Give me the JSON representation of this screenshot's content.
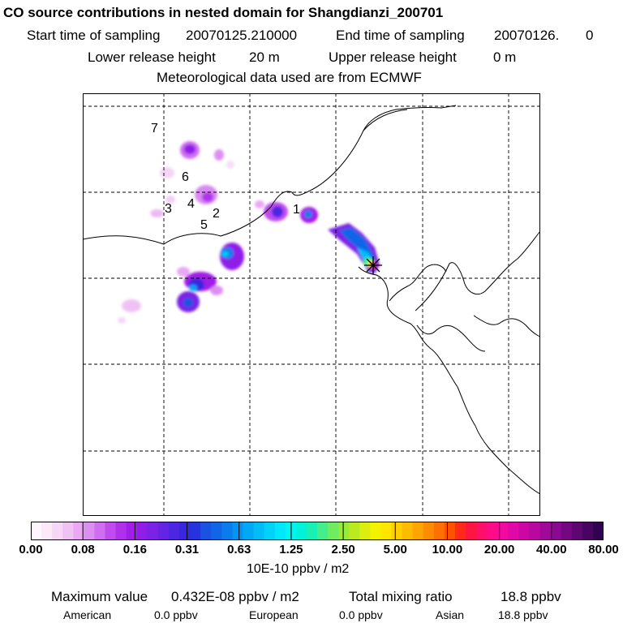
{
  "header": {
    "title": "CO  source contributions in nested domain for Shangdianzi_200701",
    "start_label": "Start time of sampling",
    "start_value": "20070125.210000",
    "end_label": "End time of sampling",
    "end_value": "20070126.",
    "end_extra": "0",
    "lower_label": "Lower release height",
    "lower_value": "20 m",
    "upper_label": "Upper release height",
    "upper_value": "0 m",
    "met_line": "Meteorological data used are from ECMWF"
  },
  "map": {
    "source_labels": [
      "1",
      "2",
      "3",
      "4",
      "5",
      "6",
      "7"
    ],
    "receptor_marker": "star-icon"
  },
  "colorbar": {
    "ticks": [
      "0.00",
      "0.08",
      "0.16",
      "0.31",
      "0.63",
      "1.25",
      "2.50",
      "5.00",
      "10.00",
      "20.00",
      "40.00",
      "80.00"
    ],
    "units": "10E-10 ppbv / m2",
    "colors": [
      "#fff5fc",
      "#fbe8f9",
      "#f6d8f6",
      "#f0c2f4",
      "#e9a8f3",
      "#dd8ff1",
      "#cf6ef0",
      "#c04cef",
      "#b030ec",
      "#a21de8",
      "#8f1ee7",
      "#7a22e6",
      "#6424e5",
      "#4d26e2",
      "#3727df",
      "#2534dc",
      "#1a52e2",
      "#1166e8",
      "#0a7ced",
      "#0592f1",
      "#00a8f5",
      "#00bdf8",
      "#00d2fa",
      "#00e6fb",
      "#00f5f0",
      "#00f2d8",
      "#18f0b4",
      "#44ee8c",
      "#6eec62",
      "#96ea3c",
      "#bcea20",
      "#dcee10",
      "#f3f200",
      "#ffe500",
      "#ffd000",
      "#ffbb00",
      "#ffa400",
      "#ff8c00",
      "#ff7000",
      "#ff5200",
      "#ff2a1a",
      "#ff1640",
      "#ff1068",
      "#ff0c88",
      "#f20aa0",
      "#e008a6",
      "#cc08a4",
      "#b808a0",
      "#a2089a",
      "#8c0890",
      "#750882",
      "#5e0672",
      "#470462",
      "#300250"
    ]
  },
  "summary": {
    "max_label": "Maximum value",
    "max_value": "0.432E-08 ppbv / m2",
    "total_label": "Total mixing ratio",
    "total_value": "18.8 ppbv",
    "regions": [
      {
        "name": "American",
        "value": "0.0 ppbv"
      },
      {
        "name": "European",
        "value": "0.0 ppbv"
      },
      {
        "name": "Asian",
        "value": "18.8 ppbv"
      }
    ]
  }
}
